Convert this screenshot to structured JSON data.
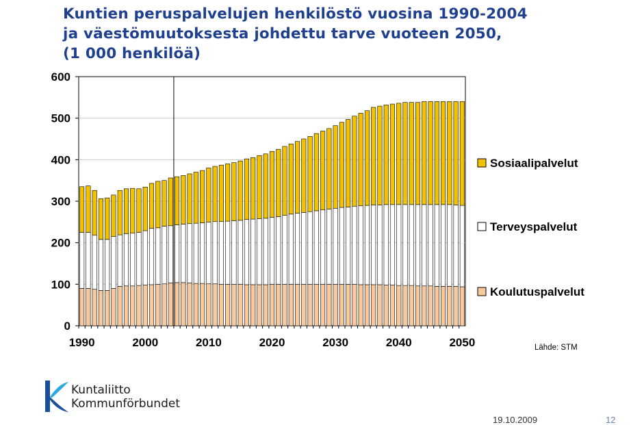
{
  "title_lines": [
    "Kuntien peruspalvelujen henkilöstö vuosina 1990-2004",
    "ja väestömuutoksesta johdettu tarve vuoteen 2050,",
    "(1 000 henkilöä)"
  ],
  "source": "Lähde: STM",
  "logo": {
    "line1": "Kuntaliitto",
    "line2": "Kommunförbundet"
  },
  "footer": {
    "date": "19.10.2009",
    "page": "12"
  },
  "colors": {
    "sosiaali": "#f2c200",
    "terveys": "#ffffff",
    "koulutus": "#f9c99b",
    "title": "#1f3f8f",
    "logo": "#1a4f9c"
  },
  "chart_data": {
    "type": "bar",
    "stacked": true,
    "title": "Kuntien peruspalvelujen henkilöstö vuosina 1990-2004 ja väestömuutoksesta johdettu tarve vuoteen 2050, (1 000 henkilöä)",
    "xlabel": "",
    "ylabel": "",
    "ylim": [
      0,
      600
    ],
    "yticks": [
      0,
      100,
      200,
      300,
      400,
      500,
      600
    ],
    "xticks": [
      1990,
      2000,
      2010,
      2020,
      2030,
      2040,
      2050
    ],
    "grid": true,
    "divider_year": 2004,
    "legend_position": "right",
    "legend": [
      "Sosiaalipalvelut",
      "Terveyspalvelut",
      "Koulutuspalvelut"
    ],
    "x": [
      1990,
      1991,
      1992,
      1993,
      1994,
      1995,
      1996,
      1997,
      1998,
      1999,
      2000,
      2001,
      2002,
      2003,
      2004,
      2005,
      2006,
      2007,
      2008,
      2009,
      2010,
      2011,
      2012,
      2013,
      2014,
      2015,
      2016,
      2017,
      2018,
      2019,
      2020,
      2021,
      2022,
      2023,
      2024,
      2025,
      2026,
      2027,
      2028,
      2029,
      2030,
      2031,
      2032,
      2033,
      2034,
      2035,
      2036,
      2037,
      2038,
      2039,
      2040,
      2041,
      2042,
      2043,
      2044,
      2045,
      2046,
      2047,
      2048,
      2049,
      2050
    ],
    "series": [
      {
        "name": "Koulutuspalvelut",
        "values": [
          90,
          90,
          88,
          85,
          85,
          90,
          95,
          96,
          96,
          97,
          98,
          99,
          100,
          101,
          103,
          104,
          104,
          103,
          102,
          102,
          101,
          101,
          100,
          100,
          100,
          100,
          99,
          99,
          99,
          99,
          100,
          100,
          100,
          100,
          100,
          100,
          100,
          100,
          100,
          100,
          100,
          100,
          100,
          100,
          99,
          99,
          99,
          99,
          98,
          98,
          97,
          97,
          97,
          96,
          96,
          96,
          95,
          95,
          95,
          95,
          94
        ]
      },
      {
        "name": "Terveyspalvelut",
        "values": [
          135,
          135,
          130,
          123,
          123,
          125,
          124,
          126,
          127,
          128,
          131,
          136,
          136,
          139,
          138,
          139,
          141,
          143,
          145,
          146,
          149,
          150,
          151,
          152,
          153,
          154,
          157,
          158,
          159,
          160,
          161,
          163,
          166,
          169,
          171,
          173,
          175,
          177,
          179,
          181,
          183,
          185,
          186,
          188,
          190,
          191,
          192,
          192,
          194,
          194,
          195,
          195,
          195,
          196,
          196,
          196,
          197,
          197,
          197,
          196,
          196
        ]
      },
      {
        "name": "Sosiaalipalvelut",
        "values": [
          110,
          112,
          108,
          98,
          100,
          100,
          107,
          108,
          108,
          105,
          105,
          108,
          112,
          110,
          115,
          116,
          117,
          120,
          123,
          126,
          130,
          133,
          136,
          138,
          140,
          143,
          146,
          148,
          152,
          155,
          159,
          162,
          166,
          169,
          173,
          177,
          181,
          186,
          190,
          194,
          199,
          205,
          211,
          217,
          223,
          228,
          235,
          238,
          240,
          242,
          244,
          246,
          246,
          246,
          248,
          248,
          248,
          248,
          248,
          249,
          250
        ]
      }
    ]
  }
}
